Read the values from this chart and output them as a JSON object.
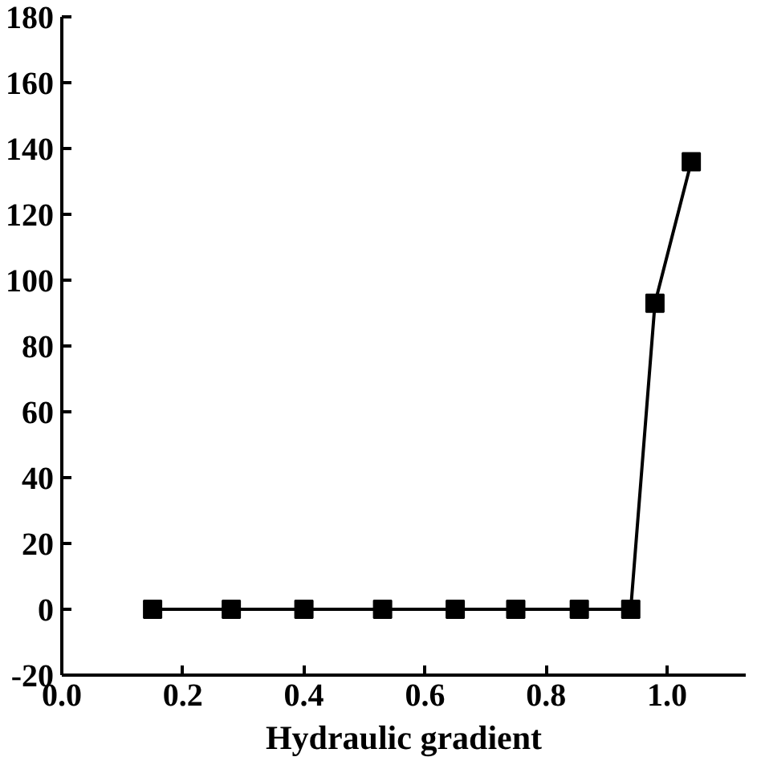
{
  "chart_data": {
    "type": "line",
    "xlabel": "Hydraulic gradient",
    "x": [
      0.15,
      0.28,
      0.4,
      0.53,
      0.65,
      0.75,
      0.855,
      0.94,
      0.98,
      1.04
    ],
    "series": [
      {
        "color": "#000000",
        "values": [
          0,
          0,
          0,
          0,
          0,
          0,
          0,
          0,
          93,
          136
        ]
      }
    ],
    "xlim": [
      0,
      1.13
    ],
    "ylim": [
      -20,
      180
    ],
    "xticks": [
      {
        "value": 0,
        "label": "0.0"
      },
      0.2,
      0.4,
      0.6,
      0.8,
      {
        "value": 1,
        "label": "1.0"
      }
    ],
    "yticks": [
      -20,
      0,
      20,
      40,
      60,
      80,
      100,
      120,
      140,
      160,
      180
    ],
    "marker": "square",
    "line_style": "solid"
  }
}
